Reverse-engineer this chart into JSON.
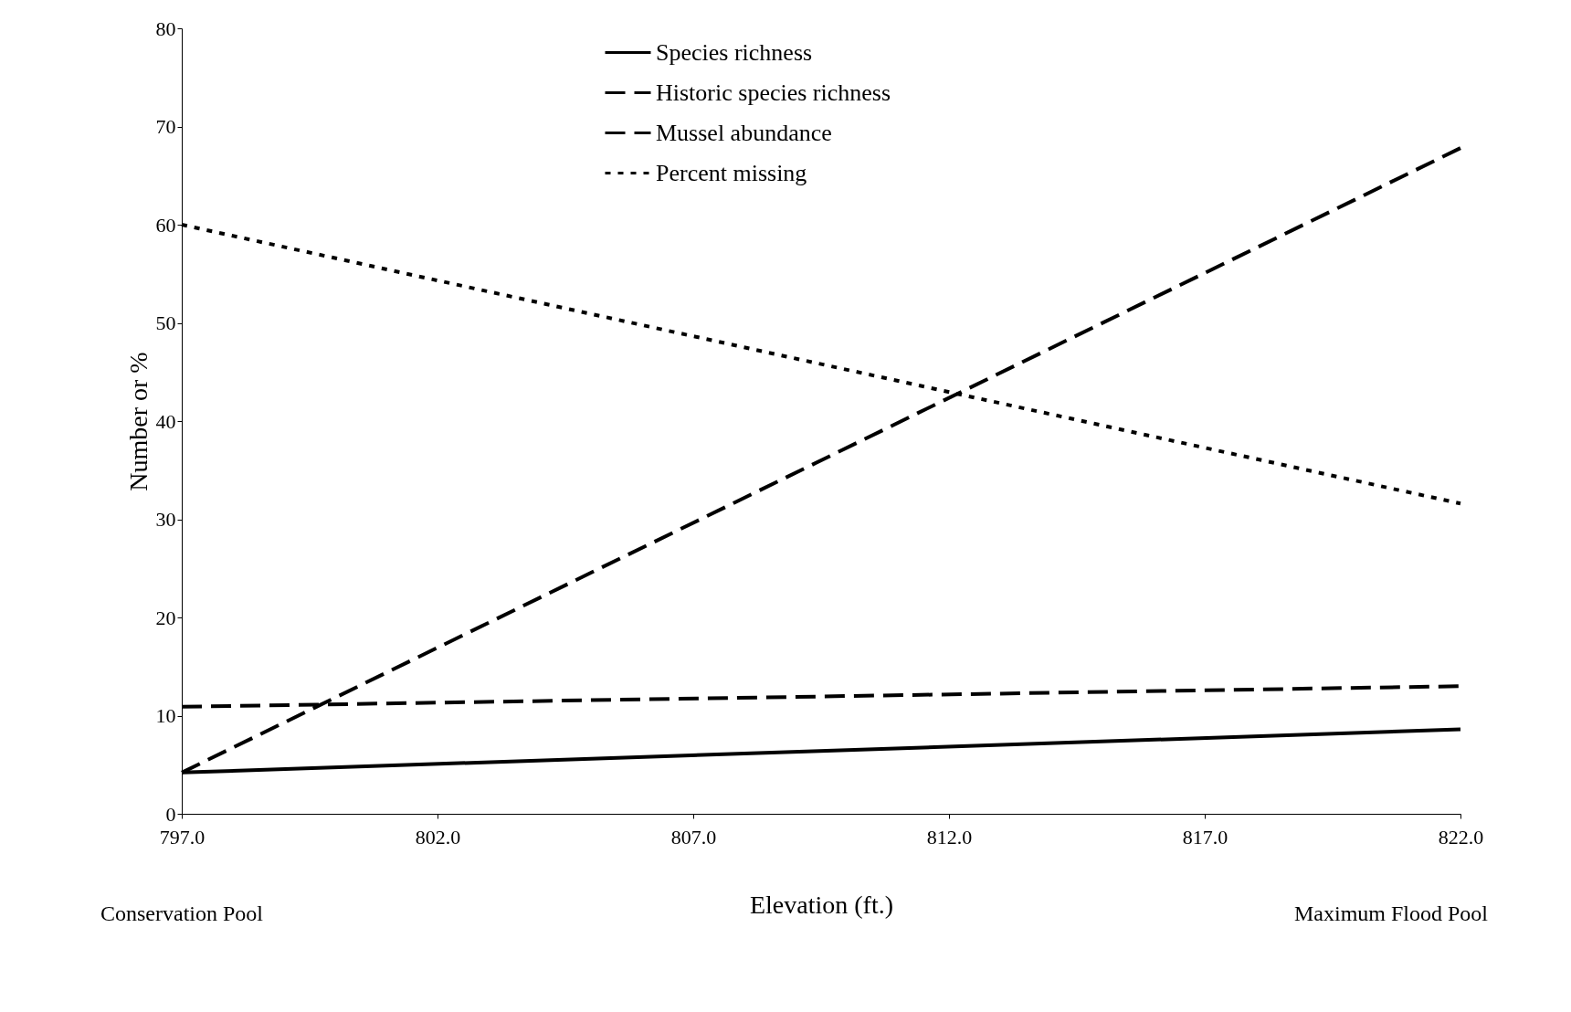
{
  "chart_data": {
    "type": "line",
    "xlabel": "Elevation (ft.)",
    "ylabel": "Number or %",
    "x": [
      797,
      822
    ],
    "series": [
      {
        "name": "Species richness",
        "color": "#000000",
        "line_style": "solid",
        "values": [
          4.2,
          8.6
        ]
      },
      {
        "name": "Historic species richness",
        "color": "#000000",
        "line_style": "dashed",
        "values": [
          10.9,
          13.0
        ]
      },
      {
        "name": "Mussel abundance",
        "color": "#000000",
        "line_style": "dashed",
        "values": [
          4.2,
          67.8
        ]
      },
      {
        "name": "Percent missing",
        "color": "#000000",
        "line_style": "dotted",
        "values": [
          60.0,
          31.6
        ]
      }
    ],
    "xlim": [
      797,
      822
    ],
    "ylim": [
      0,
      80
    ],
    "xticks": [
      {
        "value": 797,
        "label": "797.0"
      },
      {
        "value": 802,
        "label": "802.0"
      },
      {
        "value": 807,
        "label": "807.0"
      },
      {
        "value": 812,
        "label": "812.0"
      },
      {
        "value": 817,
        "label": "817.0"
      },
      {
        "value": 822,
        "label": "822.0"
      }
    ],
    "yticks": [
      0,
      10,
      20,
      30,
      40,
      50,
      60,
      70,
      80
    ],
    "annotations": [
      "Conservation Pool",
      "Maximum Flood Pool"
    ],
    "grid": false,
    "legend": "top",
    "marker": "none"
  }
}
